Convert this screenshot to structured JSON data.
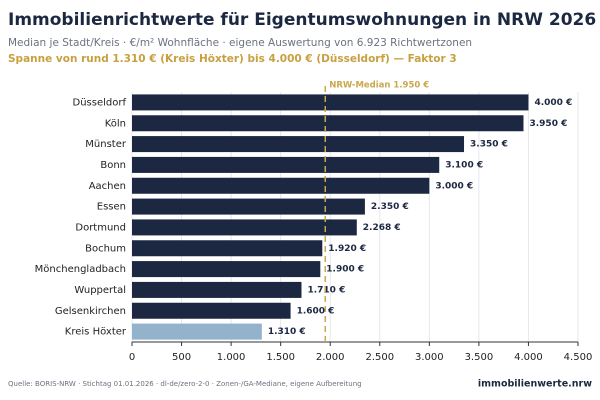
{
  "chart_data": {
    "type": "barh",
    "title": "Immobilienrichtwerte für Eigentumswohnungen in NRW 2026",
    "subtitle": "Median je Stadt/Kreis · €/m² Wohnfläche · eigene Auswertung von 6.923 Richtwertzonen",
    "highlight": "Spanne von rund 1.310 € (Kreis Höxter) bis 4.000 € (Düsseldorf) — Faktor 3",
    "source": "Quelle: BORIS-NRW · Stichtag 01.01.2026 · dl-de/zero-2-0 · Zonen-/GA-Mediane, eigene Aufbereitung",
    "brand": "immobilienwerte.nrw",
    "categories": [
      "Düsseldorf",
      "Köln",
      "Münster",
      "Bonn",
      "Aachen",
      "Essen",
      "Dortmund",
      "Bochum",
      "Mönchengladbach",
      "Wuppertal",
      "Gelsenkirchen",
      "Kreis Höxter"
    ],
    "values": [
      4000,
      3950,
      3350,
      3100,
      3000,
      2350,
      2268,
      1920,
      1900,
      1710,
      1600,
      1310
    ],
    "value_labels": [
      "4.000 €",
      "3.950 €",
      "3.350 €",
      "3.100 €",
      "3.000 €",
      "2.350 €",
      "2.268 €",
      "1.920 €",
      "1.900 €",
      "1.710 €",
      "1.600 €",
      "1.310 €"
    ],
    "colors": [
      "#1c2841",
      "#1c2841",
      "#1c2841",
      "#1c2841",
      "#1c2841",
      "#1c2841",
      "#1c2841",
      "#1c2841",
      "#1c2841",
      "#1c2841",
      "#1c2841",
      "#93b3cc"
    ],
    "xlim": [
      0,
      4500
    ],
    "xticks": [
      0,
      500,
      {
        "value": 1000,
        "label": "1.000"
      },
      {
        "value": 1500,
        "label": "1.500"
      },
      {
        "value": 2000,
        "label": "2.000"
      },
      {
        "value": 2500,
        "label": "2.500"
      },
      {
        "value": 3000,
        "label": "3.000"
      },
      {
        "value": 3500,
        "label": "3.500"
      },
      {
        "value": 4000,
        "label": "4.000"
      },
      {
        "value": 4500,
        "label": "4.500"
      }
    ],
    "grid": true,
    "reference_line": {
      "value": 1950,
      "label": "NRW-Median 1.950 €",
      "color": "#c8a84b"
    }
  }
}
